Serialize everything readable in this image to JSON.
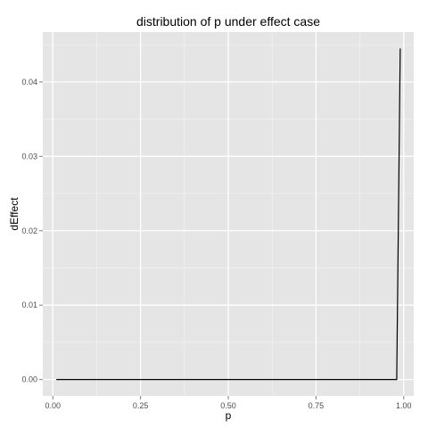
{
  "chart_data": {
    "type": "line",
    "title": "distribution of p under effect case",
    "xlabel": "p",
    "ylabel": "dEffect",
    "xlim": [
      -0.0285,
      1.0285
    ],
    "ylim": [
      -0.0022,
      0.0467
    ],
    "x_ticks": [
      0.0,
      0.25,
      0.5,
      0.75,
      1.0
    ],
    "x_tick_labels": [
      "0.00",
      "0.25",
      "0.50",
      "0.75",
      "1.00"
    ],
    "y_ticks": [
      0.0,
      0.01,
      0.02,
      0.03,
      0.04
    ],
    "y_tick_labels": [
      "0.00",
      "0.01",
      "0.02",
      "0.03",
      "0.04"
    ],
    "grid": true,
    "legend": "none",
    "series": [
      {
        "x": [
          0.01,
          0.5,
          0.98,
          0.99
        ],
        "y": [
          0.0,
          0.0,
          0.0,
          0.0445
        ]
      }
    ],
    "colors": {
      "panel_background": "#e5e5e5",
      "grid_major": "#ffffff",
      "grid_minor": "#f2f2f2",
      "line": "#000000"
    }
  }
}
